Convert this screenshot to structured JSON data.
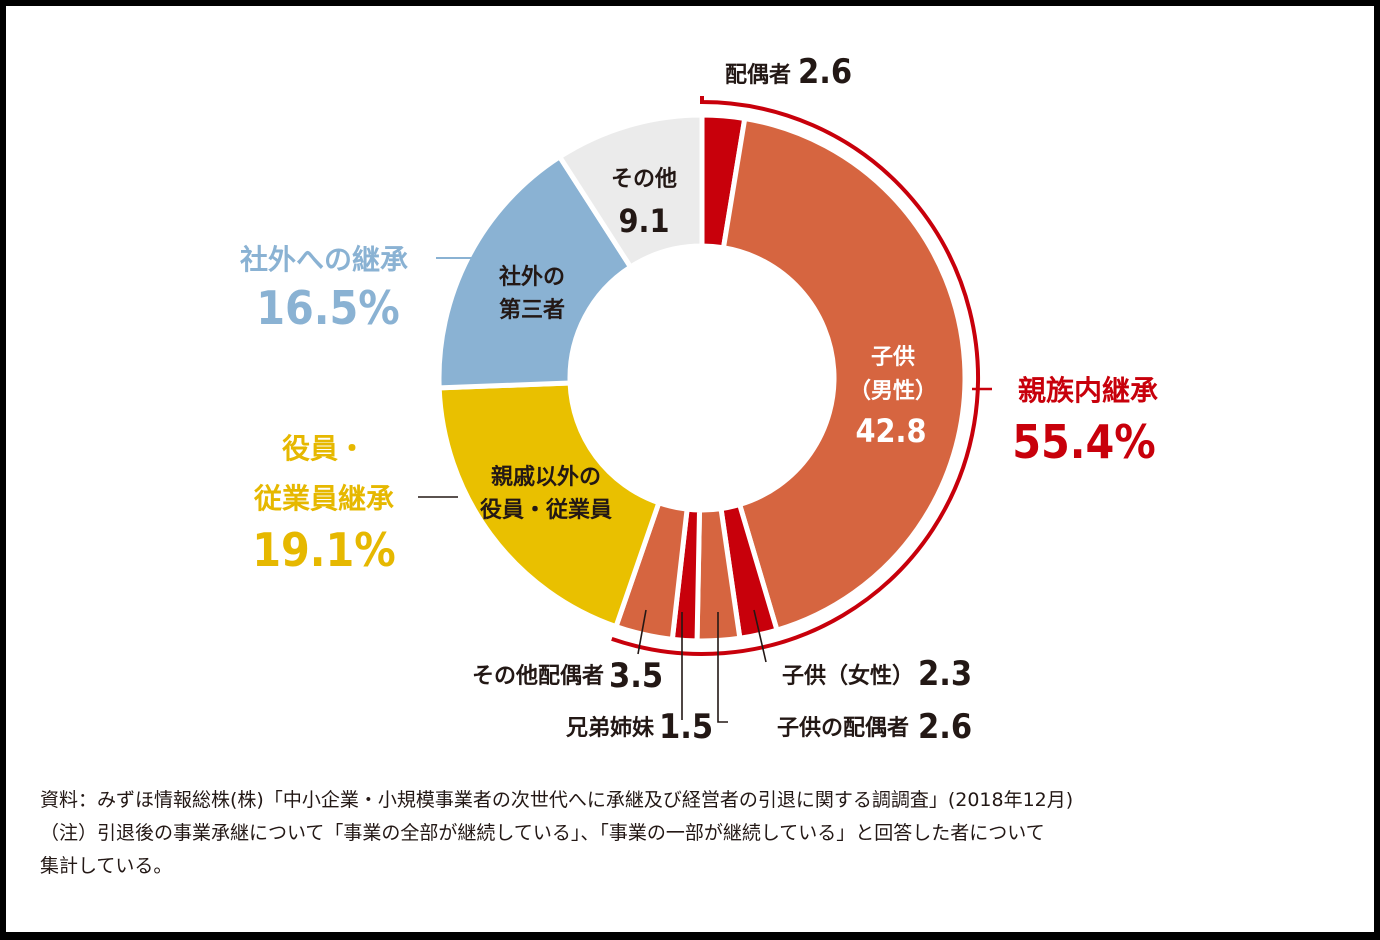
{
  "chart_data": {
    "type": "pie",
    "donut": true,
    "slices": [
      {
        "label": "配偶者",
        "value": 2.6,
        "color": "#c8000b"
      },
      {
        "label": "子供（男性）",
        "value": 42.8,
        "color": "#d66540"
      },
      {
        "label": "子供（女性）",
        "value": 2.3,
        "color": "#c8000b"
      },
      {
        "label": "子供の配偶者",
        "value": 2.6,
        "color": "#d66540"
      },
      {
        "label": "兄弟姉妹",
        "value": 1.5,
        "color": "#c8000b"
      },
      {
        "label": "その他配偶者",
        "value": 3.5,
        "color": "#d66540"
      },
      {
        "label": "親戚以外の役員・従業員",
        "value": 19.1,
        "color": "#e9c000"
      },
      {
        "label": "社外の第三者",
        "value": 16.5,
        "color": "#8ab2d3"
      },
      {
        "label": "その他",
        "value": 9.1,
        "color": "#ebebeb"
      }
    ],
    "groups": [
      {
        "label": "親族内継承",
        "value": "55.4%",
        "color": "#c8000b"
      },
      {
        "label_line1": "役員・",
        "label_line2": "従業員継承",
        "value": "19.1%",
        "color": "#e6b800"
      },
      {
        "label": "社外への継承",
        "value": "16.5%",
        "color": "#8ab2d3"
      }
    ],
    "slice_labels": {
      "spouse": {
        "text": "配偶者",
        "value": "2.6"
      },
      "son": {
        "line1": "子供",
        "line2": "（男性）",
        "value": "42.8"
      },
      "daughter": {
        "text": "子供（女性）",
        "value": "2.3"
      },
      "child_spouse": {
        "text": "子供の配偶者",
        "value": "2.6"
      },
      "siblings": {
        "text": "兄弟姉妹",
        "value": "1.5"
      },
      "other_spouse": {
        "text": "その他配偶者",
        "value": "3.5"
      },
      "employees": {
        "line1": "親戚以外の",
        "line2": "役員・従業員"
      },
      "third_party": {
        "line1": "社外の",
        "line2": "第三者"
      },
      "other": {
        "line1": "その他",
        "line2": "9.1"
      }
    }
  },
  "footnote": {
    "line1": "資料：みずほ情報総株(株)「中小企業・小規模事業者の次世代へに承継及び経営者の引退に関する調調査」(2018年12月)",
    "line2": "（注）引退後の事業承継について「事業の全部が継続している」、「事業の一部が継続している」と回答した者について",
    "line3": "集計している。"
  }
}
